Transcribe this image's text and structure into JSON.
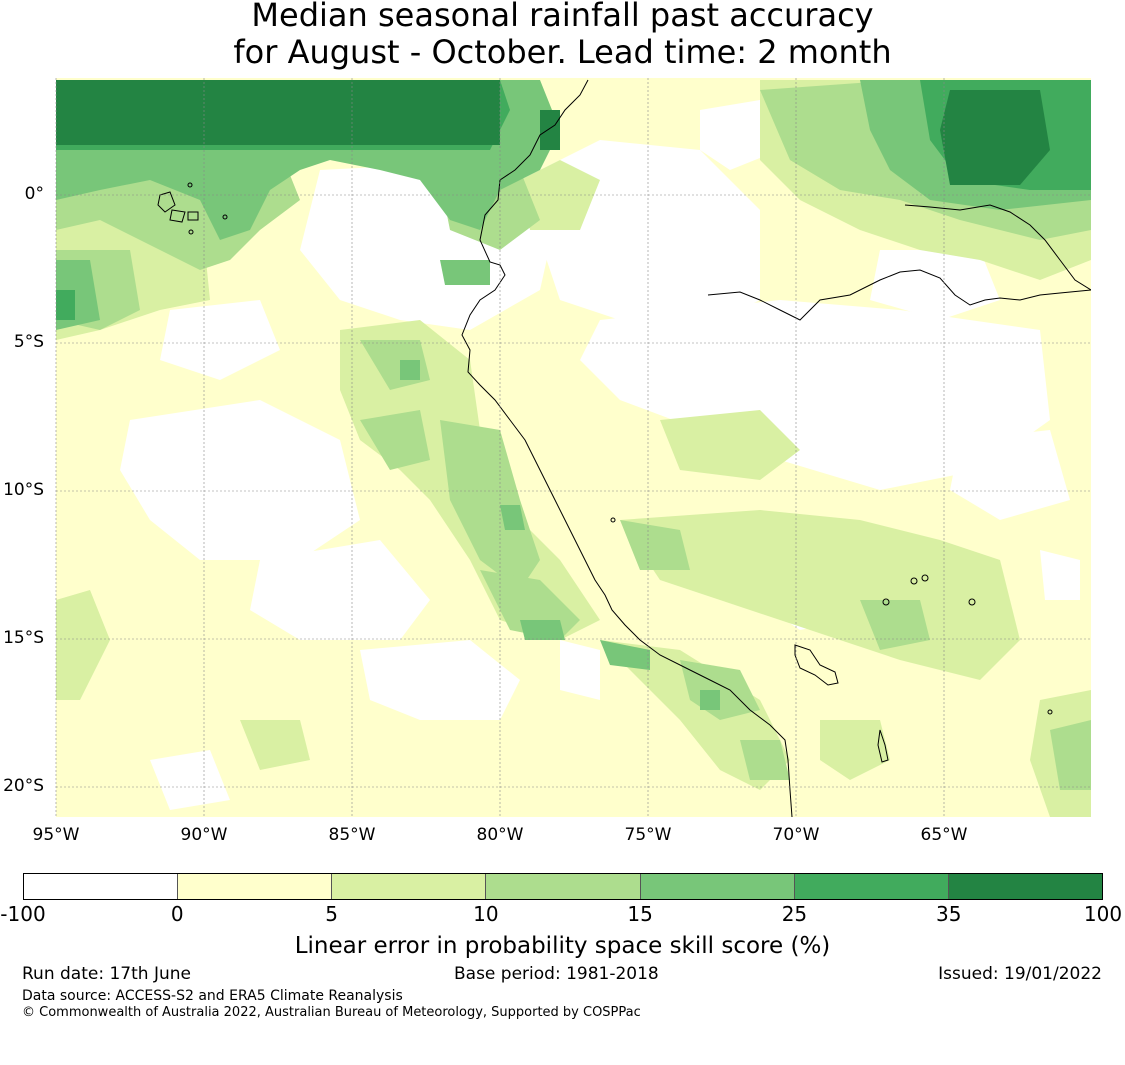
{
  "title": {
    "line1": "Median seasonal rainfall past accuracy",
    "line2": "for August - October. Lead time: 2 month"
  },
  "map": {
    "lat_labels": [
      "0°",
      "5°S",
      "10°S",
      "15°S",
      "20°S"
    ],
    "lon_labels": [
      "95°W",
      "90°W",
      "85°W",
      "80°W",
      "75°W",
      "70°W",
      "65°W"
    ]
  },
  "chart_data": {
    "type": "heatmap",
    "title": "Median seasonal rainfall past accuracy for August - October. Lead time: 2 month",
    "colorbar": {
      "label": "Linear error in probability space skill score (%)",
      "ticks": [
        "-100",
        "0",
        "5",
        "10",
        "15",
        "25",
        "35",
        "100"
      ],
      "bins": [
        {
          "from": -100,
          "to": 0,
          "color": "#ffffff"
        },
        {
          "from": 0,
          "to": 5,
          "color": "#ffffcc"
        },
        {
          "from": 5,
          "to": 10,
          "color": "#d9f0a3"
        },
        {
          "from": 10,
          "to": 15,
          "color": "#addd8e"
        },
        {
          "from": 15,
          "to": 25,
          "color": "#78c679"
        },
        {
          "from": 25,
          "to": 35,
          "color": "#41ab5d"
        },
        {
          "from": 35,
          "to": 100,
          "color": "#238443"
        }
      ]
    },
    "grid": true
  },
  "footer": {
    "run_date": "Run date: 17th June",
    "base_period": "Base period: 1981-2018",
    "issued": "Issued: 19/01/2022",
    "data_source": "Data source: ACCESS-S2 and ERA5 Climate Reanalysis",
    "copyright": "© Commonwealth of Australia 2022, Australian Bureau of Meteorology, Supported by COSPPac"
  }
}
